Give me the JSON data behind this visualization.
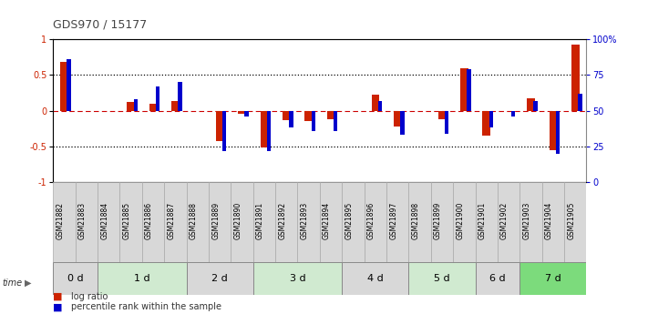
{
  "title": "GDS970 / 15177",
  "samples": [
    "GSM21882",
    "GSM21883",
    "GSM21884",
    "GSM21885",
    "GSM21886",
    "GSM21887",
    "GSM21888",
    "GSM21889",
    "GSM21890",
    "GSM21891",
    "GSM21892",
    "GSM21893",
    "GSM21894",
    "GSM21895",
    "GSM21896",
    "GSM21897",
    "GSM21898",
    "GSM21899",
    "GSM21900",
    "GSM21901",
    "GSM21902",
    "GSM21903",
    "GSM21904",
    "GSM21905"
  ],
  "log_ratio": [
    0.68,
    0.0,
    0.0,
    0.12,
    0.1,
    0.13,
    0.0,
    -0.42,
    -0.04,
    -0.52,
    -0.13,
    -0.15,
    -0.12,
    0.0,
    0.22,
    -0.22,
    0.0,
    -0.12,
    0.6,
    -0.35,
    0.0,
    0.17,
    -0.55,
    0.92
  ],
  "percentile_rank": [
    86,
    0,
    0,
    58,
    67,
    70,
    0,
    22,
    46,
    22,
    38,
    36,
    36,
    0,
    57,
    33,
    0,
    34,
    79,
    38,
    46,
    57,
    20,
    62
  ],
  "groups": [
    {
      "label": "0 d",
      "start": 0,
      "end": 2,
      "color": "#d8d8d8"
    },
    {
      "label": "1 d",
      "start": 2,
      "end": 6,
      "color": "#d0ead0"
    },
    {
      "label": "2 d",
      "start": 6,
      "end": 9,
      "color": "#d8d8d8"
    },
    {
      "label": "3 d",
      "start": 9,
      "end": 13,
      "color": "#d0ead0"
    },
    {
      "label": "4 d",
      "start": 13,
      "end": 16,
      "color": "#d8d8d8"
    },
    {
      "label": "5 d",
      "start": 16,
      "end": 19,
      "color": "#d0ead0"
    },
    {
      "label": "6 d",
      "start": 19,
      "end": 21,
      "color": "#d8d8d8"
    },
    {
      "label": "7 d",
      "start": 21,
      "end": 24,
      "color": "#7CDB7C"
    }
  ],
  "sample_box_color": "#d8d8d8",
  "bar_color_red": "#cc2200",
  "bar_color_blue": "#0000cc",
  "axis_bg": "#ffffff",
  "dotted_line_color": "#000000",
  "zero_line_color": "#cc0000",
  "right_axis_color": "#0000cc",
  "ylim_left": [
    -1,
    1
  ],
  "ylim_right": [
    0,
    100
  ],
  "yticks_left": [
    -1,
    -0.5,
    0,
    0.5,
    1
  ],
  "yticks_right": [
    0,
    25,
    50,
    75,
    100
  ],
  "ytick_labels_right": [
    "0",
    "25",
    "50",
    "75",
    "100%"
  ],
  "hlines": [
    0.5,
    -0.5
  ],
  "red_bar_width": 0.35,
  "blue_bar_width": 0.18
}
